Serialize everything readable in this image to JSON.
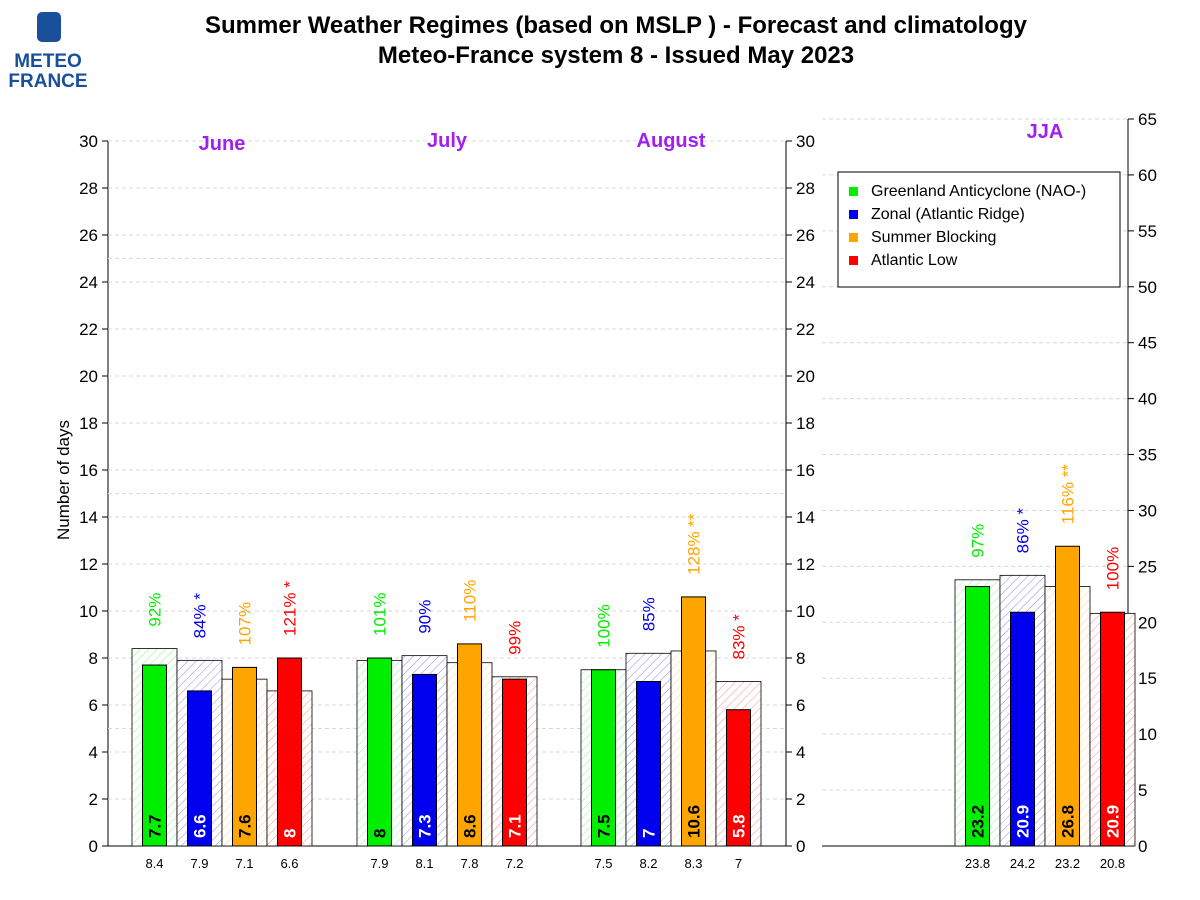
{
  "header": {
    "title_line1": "Summer Weather Regimes (based on MSLP )  -  Forecast and climatology",
    "title_line2": "Meteo-France system 8   -   Issued May 2023",
    "logo_text_1": "METEO",
    "logo_text_2": "FRANCE"
  },
  "colors": {
    "green": "#00ee00",
    "blue": "#0000ee",
    "orange": "#ffa500",
    "red": "#ff0000",
    "title_purple": "#a020f0"
  },
  "chart_data": {
    "type": "bar",
    "ylabel": "Number of days",
    "ylim_left": [
      0,
      30
    ],
    "ylim_jja": [
      0,
      65
    ],
    "yticks_left": [
      0,
      2,
      4,
      6,
      8,
      10,
      12,
      14,
      16,
      18,
      20,
      22,
      24,
      26,
      28,
      30
    ],
    "yticks_jja": [
      0,
      5,
      10,
      15,
      20,
      25,
      30,
      35,
      40,
      45,
      50,
      55,
      60,
      65
    ],
    "legend_position": "top-right",
    "regimes": [
      {
        "name": "Greenland Anticyclone (NAO-)",
        "color": "#00ee00"
      },
      {
        "name": "Zonal (Atlantic Ridge)",
        "color": "#0000ee"
      },
      {
        "name": "Summer Blocking",
        "color": "#ffa500"
      },
      {
        "name": "Atlantic Low",
        "color": "#ff0000"
      }
    ],
    "groups": [
      {
        "period": "June",
        "forecast": [
          7.7,
          6.6,
          7.6,
          8
        ],
        "forecast_labels": [
          "7.7",
          "6.6",
          "7.6",
          "8"
        ],
        "climatology": [
          8.4,
          7.9,
          7.1,
          6.6
        ],
        "climatology_labels": [
          "8.4",
          "7.9",
          "7.1",
          "6.6"
        ],
        "percent_labels": [
          "92%",
          "84% *",
          "107%",
          "121% *"
        ]
      },
      {
        "period": "July",
        "forecast": [
          8,
          7.3,
          8.6,
          7.1
        ],
        "forecast_labels": [
          "8",
          "7.3",
          "8.6",
          "7.1"
        ],
        "climatology": [
          7.9,
          8.1,
          7.8,
          7.2
        ],
        "climatology_labels": [
          "7.9",
          "8.1",
          "7.8",
          "7.2"
        ],
        "percent_labels": [
          "101%",
          "90%",
          "110%",
          "99%"
        ]
      },
      {
        "period": "August",
        "forecast": [
          7.5,
          7,
          10.6,
          5.8
        ],
        "forecast_labels": [
          "7.5",
          "7",
          "10.6",
          "5.8"
        ],
        "climatology": [
          7.5,
          8.2,
          8.3,
          7
        ],
        "climatology_labels": [
          "7.5",
          "8.2",
          "8.3",
          "7"
        ],
        "percent_labels": [
          "100%",
          "85%",
          "128% **",
          "83% *"
        ]
      },
      {
        "period": "JJA",
        "forecast": [
          23.2,
          20.9,
          26.8,
          20.9
        ],
        "forecast_labels": [
          "23.2",
          "20.9",
          "26.8",
          "20.9"
        ],
        "climatology": [
          23.8,
          24.2,
          23.2,
          20.8
        ],
        "climatology_labels": [
          "23.8",
          "24.2",
          "23.2",
          "20.8"
        ],
        "percent_labels": [
          "97%",
          "86% *",
          "116% **",
          "100%"
        ]
      }
    ]
  }
}
